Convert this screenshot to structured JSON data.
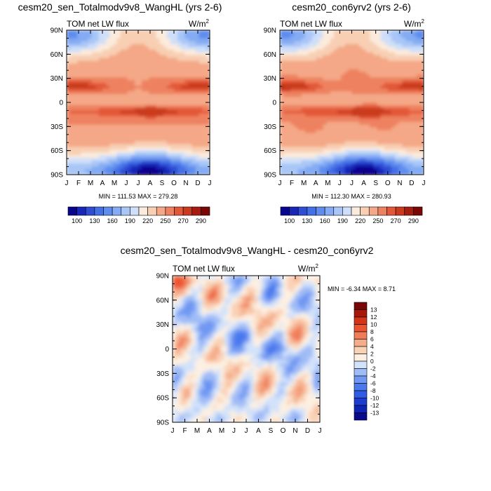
{
  "chart_data": [
    {
      "type": "heatmap",
      "title": "cesm20_sen_Totalmodv9v8_WangHL (yrs 2-6)",
      "left_label": "TOM net LW flux",
      "units_base": "W/m",
      "units_exp": "2",
      "xlabel": "",
      "ylabel": "",
      "x_ticks": [
        "J",
        "F",
        "M",
        "A",
        "M",
        "J",
        "J",
        "A",
        "S",
        "O",
        "N",
        "D",
        "J"
      ],
      "y_ticks": [
        "90N",
        "60N",
        "30N",
        "0",
        "30S",
        "60S",
        "90S"
      ],
      "ylim": [
        -90,
        90
      ],
      "stats": "MIN = 111.53 MAX = 279.28",
      "min": 111.53,
      "max": 279.28,
      "colorbar_levels": [
        100,
        115,
        130,
        145,
        160,
        175,
        190,
        205,
        220,
        235,
        250,
        260,
        270,
        280,
        290
      ],
      "colorbar_labels": [
        "100",
        "130",
        "160",
        "190",
        "220",
        "250",
        "270",
        "290"
      ],
      "colors": [
        "#08068f",
        "#1927b8",
        "#2f4ed4",
        "#4470e6",
        "#5f8dee",
        "#84abf3",
        "#a9c6f7",
        "#cfdff9",
        "#fbebdc",
        "#f8cfb3",
        "#f4a887",
        "#ee8260",
        "#e25839",
        "#c93a1e",
        "#a61c0e",
        "#7a0606"
      ]
    },
    {
      "type": "heatmap",
      "title": "cesm20_con6yrv2 (yrs 2-6)",
      "left_label": "TOM net LW flux",
      "units_base": "W/m",
      "units_exp": "2",
      "xlabel": "",
      "ylabel": "",
      "x_ticks": [
        "J",
        "F",
        "M",
        "A",
        "M",
        "J",
        "J",
        "A",
        "S",
        "O",
        "N",
        "D",
        "J"
      ],
      "y_ticks": [
        "90N",
        "60N",
        "30N",
        "0",
        "30S",
        "60S",
        "90S"
      ],
      "ylim": [
        -90,
        90
      ],
      "stats": "MIN = 112.30 MAX = 280.93",
      "min": 112.3,
      "max": 280.93,
      "colorbar_levels": [
        100,
        115,
        130,
        145,
        160,
        175,
        190,
        205,
        220,
        235,
        250,
        260,
        270,
        280,
        290
      ],
      "colorbar_labels": [
        "100",
        "130",
        "160",
        "190",
        "220",
        "250",
        "270",
        "290"
      ],
      "colors": [
        "#08068f",
        "#1927b8",
        "#2f4ed4",
        "#4470e6",
        "#5f8dee",
        "#84abf3",
        "#a9c6f7",
        "#cfdff9",
        "#fbebdc",
        "#f8cfb3",
        "#f4a887",
        "#ee8260",
        "#e25839",
        "#c93a1e",
        "#a61c0e",
        "#7a0606"
      ]
    },
    {
      "type": "heatmap",
      "title": "cesm20_sen_Totalmodv9v8_WangHL - cesm20_con6yrv2",
      "left_label": "TOM net LW flux",
      "units_base": "W/m",
      "units_exp": "2",
      "xlabel": "",
      "ylabel": "",
      "x_ticks": [
        "J",
        "F",
        "M",
        "A",
        "M",
        "J",
        "J",
        "A",
        "S",
        "O",
        "N",
        "D",
        "J"
      ],
      "y_ticks": [
        "90N",
        "60N",
        "30N",
        "0",
        "30S",
        "60S",
        "90S"
      ],
      "ylim": [
        -90,
        90
      ],
      "stats": "MIN =  -6.34 MAX =   8.71",
      "min": -6.34,
      "max": 8.71,
      "colorbar_levels": [
        -13,
        -12,
        -10,
        -8,
        -6,
        -4,
        -2,
        0,
        2,
        4,
        6,
        8,
        10,
        12,
        13
      ],
      "colorbar_labels": [
        "13",
        "12",
        "10",
        "8",
        "6",
        "4",
        "2",
        "0",
        "-2",
        "-4",
        "-6",
        "-8",
        "-10",
        "-12",
        "-13"
      ],
      "colors": [
        "#0a0a8c",
        "#1024b4",
        "#1c3ed0",
        "#2e5ce6",
        "#4a78ee",
        "#7098f2",
        "#a0bcf6",
        "#d2e2fa",
        "#fdf0e2",
        "#f9d2b6",
        "#f5ac8a",
        "#f17d58",
        "#ec5330",
        "#d43418",
        "#a8180a",
        "#7a0606"
      ]
    }
  ]
}
